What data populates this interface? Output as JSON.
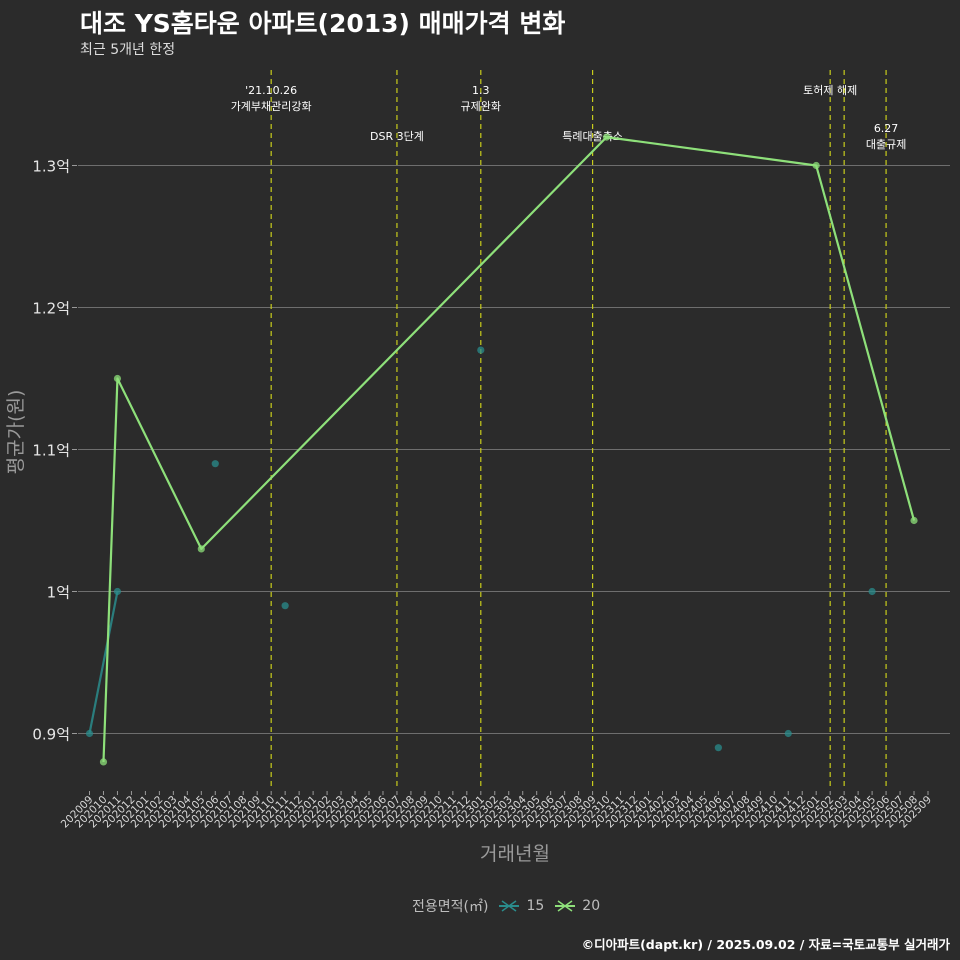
{
  "header": {
    "title": "대조 YS홈타운 아파트(2013) 매매가격 변화",
    "subtitle": "최근 5개년 한정"
  },
  "footer": {
    "caption": "©디아파트(dapt.kr) / 2025.09.02 / 자료=국토교통부 실거래가"
  },
  "legend": {
    "title": "전용면적(㎡)",
    "items": [
      {
        "label": "15",
        "color": "#2a8c8c"
      },
      {
        "label": "20",
        "color": "#8ee07a"
      }
    ]
  },
  "chart_data": {
    "type": "line",
    "xlabel": "거래년월",
    "ylabel": "평균가(원)",
    "ylim": [
      0.86,
      1.36
    ],
    "yticks": [
      0.9,
      1.0,
      1.1,
      1.2,
      1.3
    ],
    "ytick_labels": [
      "0.9억",
      "1억",
      "1.1억",
      "1.2억",
      "1.3억"
    ],
    "grid": true,
    "legend_position": "bottom",
    "categories": [
      "202009",
      "202010",
      "202011",
      "202012",
      "202101",
      "202102",
      "202103",
      "202104",
      "202105",
      "202106",
      "202107",
      "202108",
      "202109",
      "202110",
      "202111",
      "202112",
      "202201",
      "202202",
      "202203",
      "202204",
      "202205",
      "202206",
      "202207",
      "202208",
      "202209",
      "202210",
      "202211",
      "202212",
      "202301",
      "202302",
      "202303",
      "202304",
      "202305",
      "202306",
      "202307",
      "202308",
      "202309",
      "202310",
      "202311",
      "202312",
      "202401",
      "202402",
      "202403",
      "202404",
      "202405",
      "202406",
      "202407",
      "202408",
      "202409",
      "202410",
      "202411",
      "202412",
      "202501",
      "202502",
      "202503",
      "202504",
      "202505",
      "202506",
      "202507",
      "202508",
      "202509"
    ],
    "series": [
      {
        "name": "15",
        "color": "#2a8c8c",
        "line": [
          [
            "202009",
            0.9
          ],
          [
            "202011",
            1.0
          ]
        ],
        "points": [
          [
            "202009",
            0.9
          ],
          [
            "202011",
            1.0
          ],
          [
            "202106",
            1.09
          ],
          [
            "202111",
            0.99
          ],
          [
            "202301",
            1.17
          ],
          [
            "202406",
            0.89
          ],
          [
            "202411",
            0.9
          ],
          [
            "202505",
            1.0
          ]
        ]
      },
      {
        "name": "20",
        "color": "#8ee07a",
        "line": [
          [
            "202010",
            0.88
          ],
          [
            "202011",
            1.15
          ],
          [
            "202105",
            1.03
          ],
          [
            "202310",
            1.32
          ],
          [
            "202501",
            1.3
          ],
          [
            "202508",
            1.05
          ]
        ],
        "points": [
          [
            "202010",
            0.88
          ],
          [
            "202011",
            1.15
          ],
          [
            "202105",
            1.03
          ],
          [
            "202310",
            1.32
          ],
          [
            "202501",
            1.3
          ],
          [
            "202508",
            1.05
          ]
        ]
      }
    ],
    "events": [
      {
        "x": "202110",
        "lines": [
          "'21.10.26",
          "가계부채관리강화"
        ],
        "row": 1
      },
      {
        "x": "202207",
        "lines": [
          "DSR 3단계"
        ],
        "row": 2
      },
      {
        "x": "202301",
        "lines": [
          "1.3",
          "규제완화"
        ],
        "row": 1
      },
      {
        "x": "202309",
        "lines": [
          "특례대출축소"
        ],
        "row": 2
      },
      {
        "x": "202502",
        "lines": [
          "토허제 해제"
        ],
        "row": 1
      },
      {
        "x": "202503",
        "lines": [],
        "row": 1
      },
      {
        "x": "202506",
        "lines": [
          "6.27",
          "대출규제"
        ],
        "row": 3
      }
    ]
  }
}
